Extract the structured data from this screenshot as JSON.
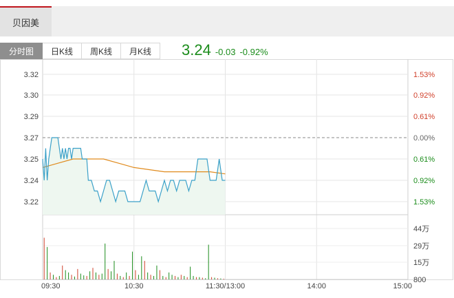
{
  "stock": {
    "name": "贝因美"
  },
  "tabs": [
    {
      "label": "分时图",
      "active": true
    },
    {
      "label": "日K线",
      "active": false
    },
    {
      "label": "周K线",
      "active": false
    },
    {
      "label": "月K线",
      "active": false
    }
  ],
  "quote": {
    "price": "3.24",
    "change": "-0.03",
    "change_pct": "-0.92%"
  },
  "colors": {
    "up": "#d0402b",
    "down": "#1b8c1b",
    "price_line": "#3aa0c8",
    "avg_line": "#e08a1c",
    "accent": "#c0141c"
  },
  "chart_data": {
    "type": "line",
    "price_axis": {
      "ticks": [
        "3.32",
        "3.30",
        "3.29",
        "3.27",
        "3.25",
        "3.24",
        "3.22"
      ],
      "values": [
        3.32,
        3.3,
        3.29,
        3.27,
        3.25,
        3.24,
        3.22
      ],
      "base": 3.27
    },
    "pct_axis": {
      "ticks": [
        "1.53%",
        "0.92%",
        "0.61%",
        "0.00%",
        "0.61%",
        "0.92%",
        "1.53%"
      ]
    },
    "volume_axis": {
      "ticks": [
        "44万",
        "29万",
        "15万",
        "800"
      ],
      "values": [
        440000,
        290000,
        150000,
        800
      ]
    },
    "time_axis": {
      "ticks": [
        "09:30",
        "10:30",
        "11:30/13:00",
        "14:00",
        "15:00"
      ],
      "minutes": [
        0,
        60,
        120,
        180,
        240
      ]
    },
    "series": [
      {
        "key": "price",
        "minutes": [
          0,
          1,
          2,
          3,
          4,
          5,
          6,
          7,
          8,
          9,
          10,
          11,
          12,
          13,
          14,
          15,
          16,
          17,
          18,
          19,
          20,
          21,
          22,
          23,
          24,
          25,
          26,
          27,
          28,
          29,
          30,
          32,
          34,
          36,
          38,
          40,
          42,
          44,
          46,
          48,
          50,
          52,
          54,
          56,
          58,
          60,
          62,
          64,
          66,
          68,
          70,
          72,
          74,
          76,
          78,
          80,
          82,
          84,
          86,
          88,
          90,
          92,
          94,
          96,
          98,
          100,
          102,
          104,
          106,
          108,
          110,
          112,
          114,
          116,
          118,
          120
        ],
        "values": [
          3.25,
          3.24,
          3.26,
          3.24,
          3.25,
          3.26,
          3.27,
          3.27,
          3.27,
          3.27,
          3.27,
          3.26,
          3.25,
          3.26,
          3.25,
          3.26,
          3.25,
          3.26,
          3.26,
          3.25,
          3.26,
          3.26,
          3.26,
          3.26,
          3.26,
          3.26,
          3.25,
          3.25,
          3.25,
          3.25,
          3.24,
          3.24,
          3.23,
          3.23,
          3.22,
          3.23,
          3.24,
          3.24,
          3.23,
          3.22,
          3.23,
          3.23,
          3.23,
          3.22,
          3.22,
          3.22,
          3.22,
          3.22,
          3.23,
          3.24,
          3.23,
          3.23,
          3.23,
          3.22,
          3.23,
          3.24,
          3.23,
          3.24,
          3.24,
          3.23,
          3.24,
          3.24,
          3.24,
          3.23,
          3.24,
          3.24,
          3.25,
          3.25,
          3.25,
          3.25,
          3.24,
          3.24,
          3.24,
          3.25,
          3.24,
          3.24
        ]
      },
      {
        "key": "avg",
        "minutes": [
          0,
          10,
          20,
          30,
          40,
          50,
          60,
          70,
          80,
          90,
          100,
          110,
          120
        ],
        "values": [
          3.246,
          3.248,
          3.25,
          3.25,
          3.25,
          3.248,
          3.246,
          3.245,
          3.244,
          3.244,
          3.244,
          3.244,
          3.243
        ]
      }
    ],
    "volume": {
      "minutes": [
        1,
        3,
        5,
        7,
        9,
        11,
        13,
        15,
        17,
        19,
        21,
        23,
        25,
        27,
        29,
        31,
        33,
        35,
        37,
        39,
        41,
        43,
        45,
        47,
        49,
        51,
        53,
        55,
        57,
        59,
        61,
        63,
        65,
        67,
        69,
        71,
        73,
        75,
        77,
        79,
        81,
        83,
        85,
        87,
        89,
        91,
        93,
        95,
        97,
        99,
        101,
        103,
        105,
        107,
        109,
        111,
        113,
        115,
        117,
        119
      ],
      "values": [
        360000,
        280000,
        60000,
        40000,
        20000,
        30000,
        120000,
        80000,
        60000,
        40000,
        25000,
        90000,
        50000,
        35000,
        30000,
        70000,
        100000,
        60000,
        40000,
        50000,
        310000,
        90000,
        70000,
        160000,
        50000,
        30000,
        20000,
        60000,
        30000,
        240000,
        80000,
        40000,
        200000,
        160000,
        60000,
        40000,
        30000,
        120000,
        80000,
        30000,
        20000,
        60000,
        40000,
        30000,
        20000,
        40000,
        30000,
        20000,
        110000,
        30000,
        20000,
        20000,
        15000,
        10000,
        300000,
        20000,
        15000,
        10000,
        8000,
        5000
      ],
      "up": [
        true,
        false,
        true,
        false,
        true,
        false,
        true,
        false,
        false,
        true,
        false,
        true,
        false,
        false,
        true,
        false,
        true,
        false,
        true,
        false,
        false,
        true,
        false,
        false,
        true,
        false,
        true,
        false,
        true,
        false,
        true,
        false,
        false,
        true,
        false,
        true,
        false,
        false,
        true,
        false,
        true,
        false,
        false,
        true,
        false,
        true,
        false,
        true,
        false,
        false,
        true,
        false,
        true,
        false,
        false,
        true,
        false,
        true,
        false,
        true
      ]
    }
  }
}
